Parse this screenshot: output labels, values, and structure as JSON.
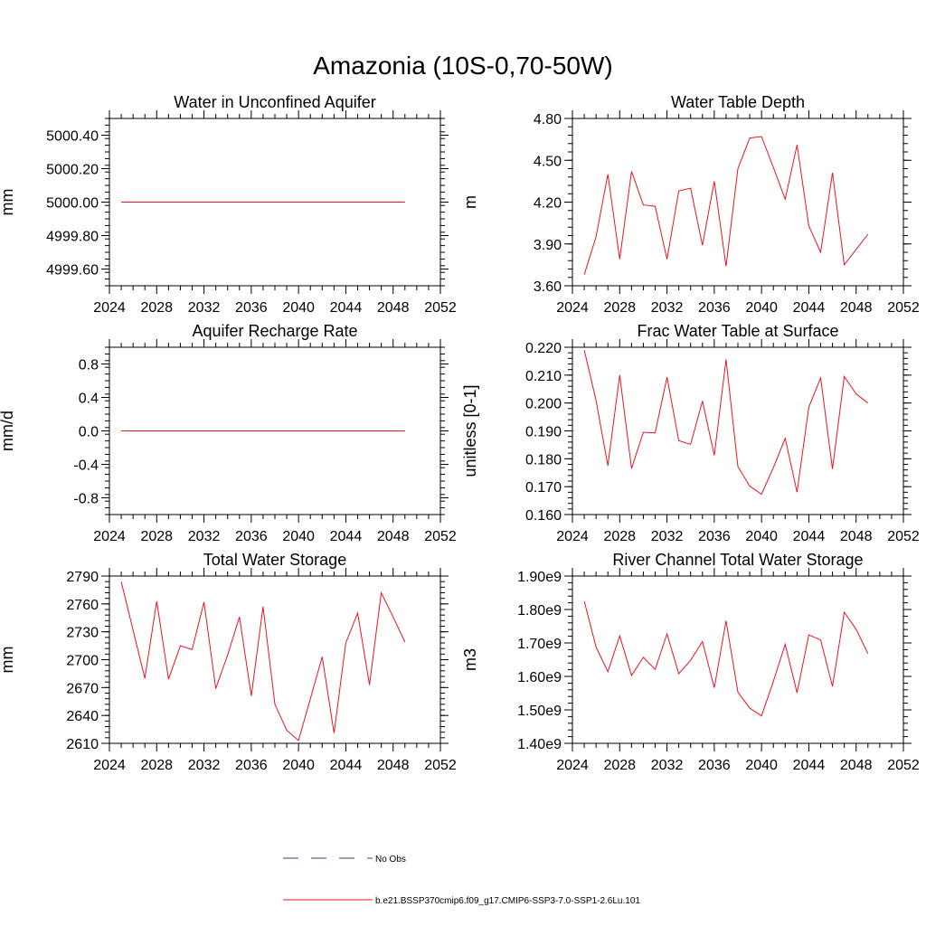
{
  "figure": {
    "title": "Amazonia (10S-0,70-50W)",
    "legend": [
      {
        "label": "No Obs",
        "color": "#3a3a8c",
        "style": "dashed"
      },
      {
        "label": "b.e21.BSSP370cmip6.f09_g17.CMIP6-SSP3-7.0-SSP1-2.6Lu.101",
        "color": "#e8141e",
        "style": "solid"
      }
    ]
  },
  "chart_data": [
    {
      "type": "line",
      "title": "Water in Unconfined Aquifer",
      "ylabel": "mm",
      "xlim": [
        2024,
        2052
      ],
      "xticks": [
        "2024",
        "2028",
        "2032",
        "2036",
        "2040",
        "2044",
        "2048",
        "2052"
      ],
      "ylim": [
        4999.5,
        5000.5
      ],
      "yticks": [
        "4999.60",
        "4999.80",
        "5000.00",
        "5000.20",
        "5000.40"
      ],
      "grid": false,
      "series": [
        {
          "color": "#e8141e",
          "x": [
            2025,
            2026,
            2027,
            2028,
            2029,
            2030,
            2031,
            2032,
            2033,
            2034,
            2035,
            2036,
            2037,
            2038,
            2039,
            2040,
            2041,
            2042,
            2043,
            2044,
            2045,
            2046,
            2047,
            2048,
            2049
          ],
          "y": [
            5000,
            5000,
            5000,
            5000,
            5000,
            5000,
            5000,
            5000,
            5000,
            5000,
            5000,
            5000,
            5000,
            5000,
            5000,
            5000,
            5000,
            5000,
            5000,
            5000,
            5000,
            5000,
            5000,
            5000,
            5000
          ]
        }
      ]
    },
    {
      "type": "line",
      "title": "Water Table Depth",
      "ylabel": "m",
      "xlim": [
        2024,
        2052
      ],
      "xticks": [
        "2024",
        "2028",
        "2032",
        "2036",
        "2040",
        "2044",
        "2048",
        "2052"
      ],
      "ylim": [
        3.6,
        4.8
      ],
      "yticks": [
        "3.60",
        "3.90",
        "4.20",
        "4.50",
        "4.80"
      ],
      "grid": false,
      "series": [
        {
          "color": "#e8141e",
          "x": [
            2025,
            2026,
            2027,
            2028,
            2029,
            2030,
            2031,
            2032,
            2033,
            2034,
            2035,
            2036,
            2037,
            2038,
            2039,
            2040,
            2041,
            2042,
            2043,
            2044,
            2045,
            2046,
            2047,
            2048,
            2049
          ],
          "y": [
            3.68,
            3.95,
            4.4,
            3.79,
            4.42,
            4.18,
            4.17,
            3.79,
            4.28,
            4.3,
            3.89,
            4.35,
            3.74,
            4.44,
            4.66,
            4.67,
            4.45,
            4.22,
            4.61,
            4.03,
            3.84,
            4.41,
            3.75,
            3.86,
            3.97
          ]
        }
      ]
    },
    {
      "type": "line",
      "title": "Aquifer Recharge Rate",
      "ylabel": "mm/d",
      "xlim": [
        2024,
        2052
      ],
      "xticks": [
        "2024",
        "2028",
        "2032",
        "2036",
        "2040",
        "2044",
        "2048",
        "2052"
      ],
      "ylim": [
        -1.0,
        1.0
      ],
      "yticks": [
        "-0.8",
        "-0.4",
        "0.0",
        "0.4",
        "0.8"
      ],
      "grid": false,
      "series": [
        {
          "color": "#e8141e",
          "x": [
            2025,
            2026,
            2027,
            2028,
            2029,
            2030,
            2031,
            2032,
            2033,
            2034,
            2035,
            2036,
            2037,
            2038,
            2039,
            2040,
            2041,
            2042,
            2043,
            2044,
            2045,
            2046,
            2047,
            2048,
            2049
          ],
          "y": [
            0,
            0,
            0,
            0,
            0,
            0,
            0,
            0,
            0,
            0,
            0,
            0,
            0,
            0,
            0,
            0,
            0,
            0,
            0,
            0,
            0,
            0,
            0,
            0,
            0
          ]
        }
      ]
    },
    {
      "type": "line",
      "title": "Frac Water Table at Surface",
      "ylabel": "unitless [0-1]",
      "xlim": [
        2024,
        2052
      ],
      "xticks": [
        "2024",
        "2028",
        "2032",
        "2036",
        "2040",
        "2044",
        "2048",
        "2052"
      ],
      "ylim": [
        0.16,
        0.22
      ],
      "yticks": [
        "0.160",
        "0.170",
        "0.180",
        "0.190",
        "0.200",
        "0.210",
        "0.220"
      ],
      "grid": false,
      "series": [
        {
          "color": "#e8141e",
          "x": [
            2025,
            2026,
            2027,
            2028,
            2029,
            2030,
            2031,
            2032,
            2033,
            2034,
            2035,
            2036,
            2037,
            2038,
            2039,
            2040,
            2041,
            2042,
            2043,
            2044,
            2045,
            2046,
            2047,
            2048,
            2049
          ],
          "y": [
            0.219,
            0.201,
            0.1775,
            0.21,
            0.1765,
            0.1895,
            0.1893,
            0.2093,
            0.1865,
            0.1852,
            0.2007,
            0.1812,
            0.2156,
            0.1772,
            0.1702,
            0.1673,
            0.1768,
            0.1873,
            0.168,
            0.1985,
            0.209,
            0.1763,
            0.2095,
            0.2033,
            0.2
          ]
        }
      ]
    },
    {
      "type": "line",
      "title": "Total Water Storage",
      "ylabel": "mm",
      "xlim": [
        2024,
        2052
      ],
      "xticks": [
        "2024",
        "2028",
        "2032",
        "2036",
        "2040",
        "2044",
        "2048",
        "2052"
      ],
      "ylim": [
        2610,
        2790
      ],
      "yticks": [
        "2610",
        "2640",
        "2670",
        "2700",
        "2730",
        "2760",
        "2790"
      ],
      "grid": false,
      "series": [
        {
          "color": "#e8141e",
          "x": [
            2025,
            2026,
            2027,
            2028,
            2029,
            2030,
            2031,
            2032,
            2033,
            2034,
            2035,
            2036,
            2037,
            2038,
            2039,
            2040,
            2041,
            2042,
            2043,
            2044,
            2045,
            2046,
            2047,
            2048,
            2049
          ],
          "y": [
            2784,
            2732,
            2680,
            2763,
            2679,
            2715,
            2711,
            2762,
            2669,
            2705,
            2746,
            2661,
            2757,
            2652,
            2624,
            2613,
            2658,
            2703,
            2621,
            2718,
            2750,
            2673,
            2772,
            2746,
            2719
          ]
        }
      ]
    },
    {
      "type": "line",
      "title": "River Channel Total Water Storage",
      "ylabel": "m3",
      "xlim": [
        2024,
        2052
      ],
      "xticks": [
        "2024",
        "2028",
        "2032",
        "2036",
        "2040",
        "2044",
        "2048",
        "2052"
      ],
      "ylim": [
        1400000000.0,
        1900000000.0
      ],
      "yticks": [
        "1.40e9",
        "1.50e9",
        "1.60e9",
        "1.70e9",
        "1.80e9",
        "1.90e9"
      ],
      "grid": false,
      "series": [
        {
          "color": "#e8141e",
          "x": [
            2025,
            2026,
            2027,
            2028,
            2029,
            2030,
            2031,
            2032,
            2033,
            2034,
            2035,
            2036,
            2037,
            2038,
            2039,
            2040,
            2041,
            2042,
            2043,
            2044,
            2045,
            2046,
            2047,
            2048,
            2049
          ],
          "y": [
            1825000000.0,
            1688000000.0,
            1614000000.0,
            1721000000.0,
            1603000000.0,
            1657000000.0,
            1621000000.0,
            1727000000.0,
            1608000000.0,
            1648000000.0,
            1704000000.0,
            1566000000.0,
            1766000000.0,
            1553000000.0,
            1505000000.0,
            1482000000.0,
            1585000000.0,
            1696000000.0,
            1551000000.0,
            1724000000.0,
            1709000000.0,
            1570000000.0,
            1792000000.0,
            1741000000.0,
            1668000000.0
          ]
        }
      ]
    }
  ]
}
